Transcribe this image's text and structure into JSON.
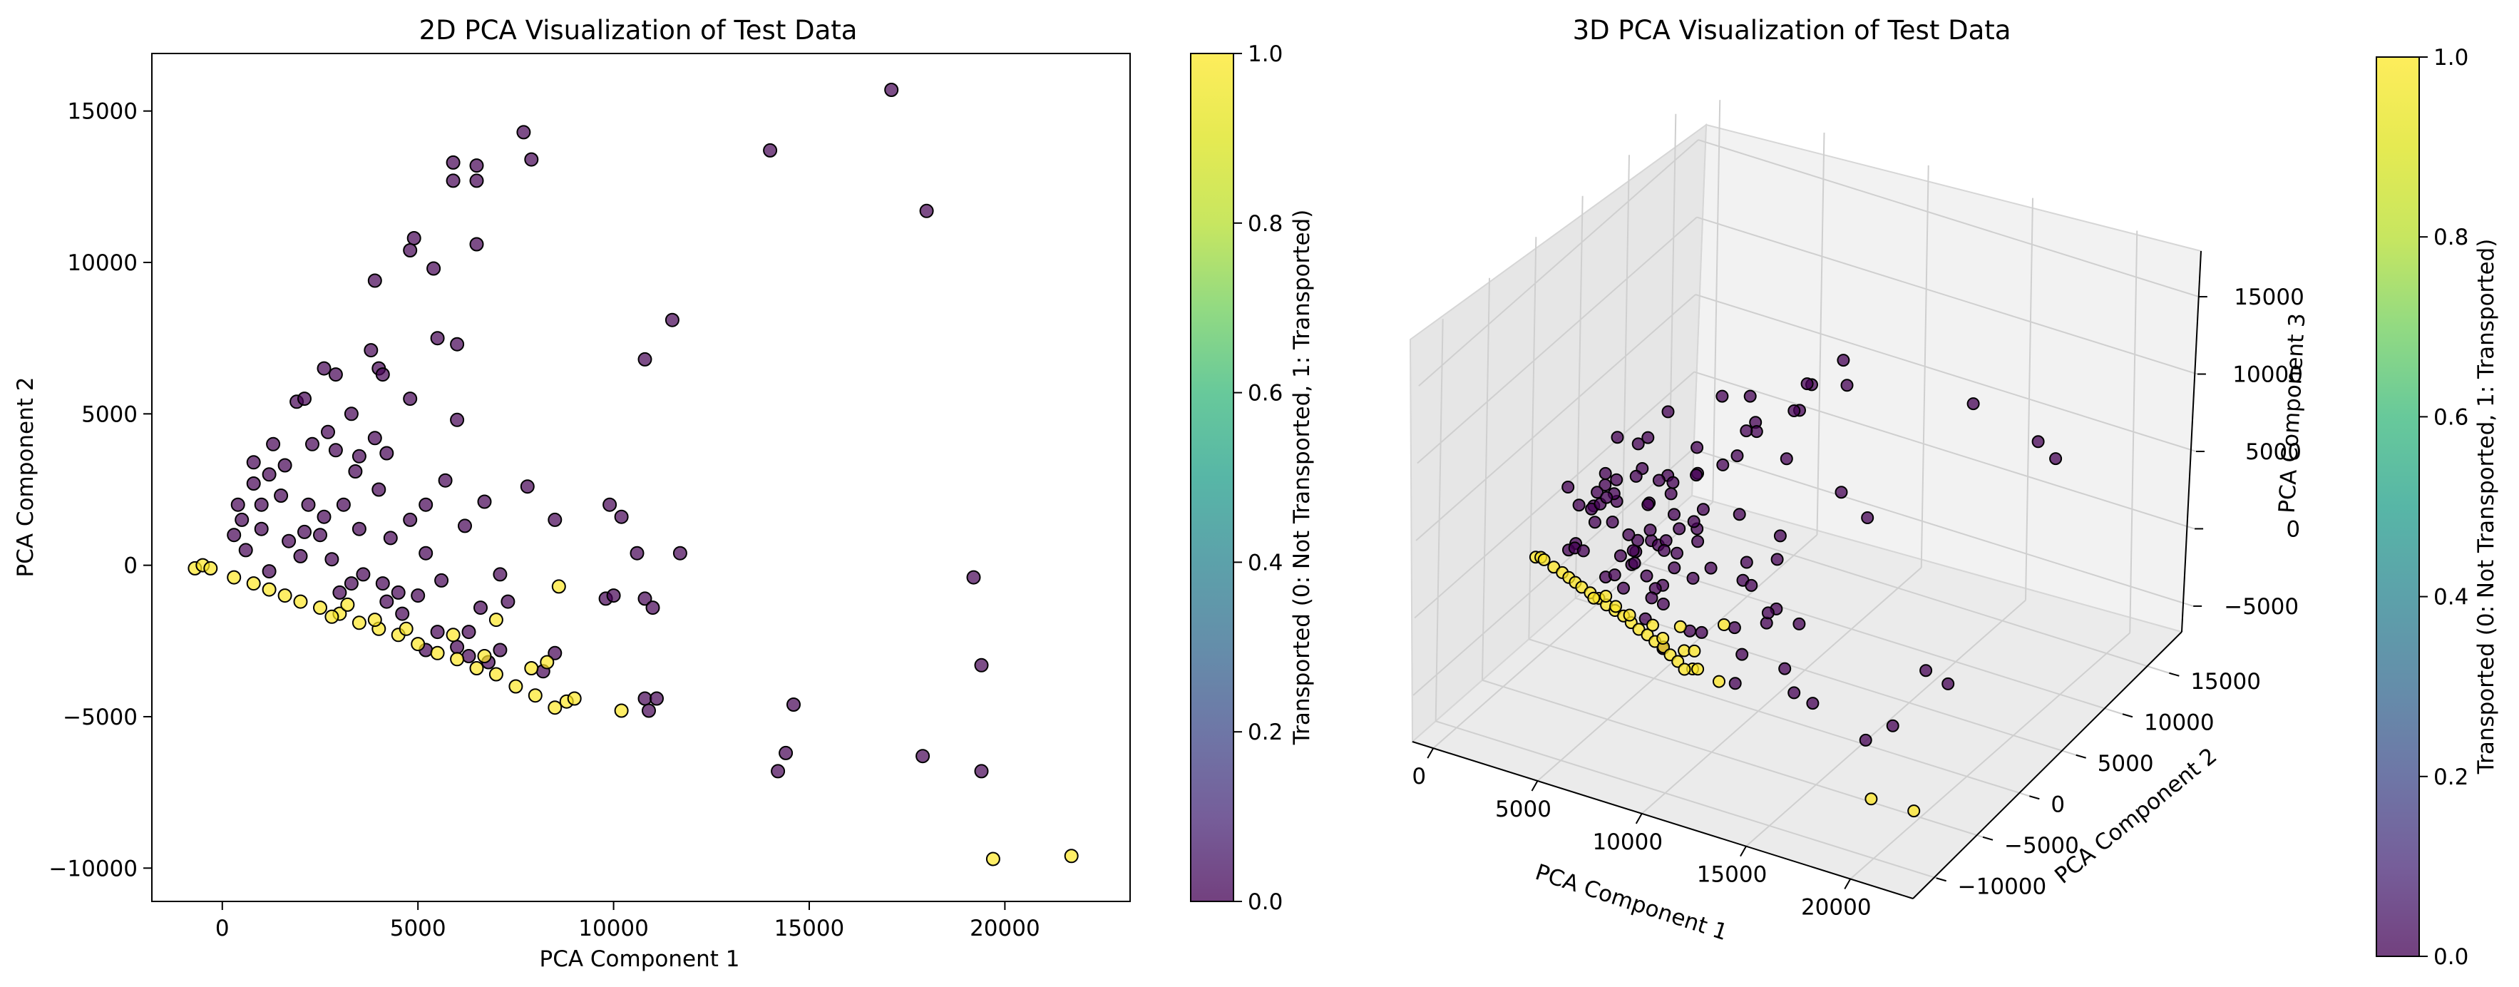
{
  "chart_data": [
    {
      "type": "scatter",
      "title": "2D PCA Visualization of Test Data",
      "xlabel": "PCA Component 1",
      "ylabel": "PCA Component 2",
      "xlim": [
        -1800,
        23200
      ],
      "ylim": [
        -11100,
        16900
      ],
      "xticks": [
        0,
        5000,
        10000,
        15000,
        20000
      ],
      "yticks": [
        -10000,
        -5000,
        0,
        5000,
        10000,
        15000
      ],
      "xtick_labels": [
        "0",
        "5000",
        "10000",
        "15000",
        "20000"
      ],
      "ytick_labels": [
        "−10000",
        "−5000",
        "0",
        "5000",
        "10000",
        "15000"
      ],
      "colorbar": {
        "label": "Transported (0: Not Transported, 1: Transported)",
        "range": [
          0,
          1
        ],
        "ticks": [
          "0.0",
          "0.2",
          "0.4",
          "0.6",
          "0.8",
          "1.0"
        ]
      },
      "series": [
        {
          "name": "Not Transported (0)",
          "color": "#440154",
          "points": [
            [
              17100,
              15700
            ],
            [
              7700,
              14300
            ],
            [
              14000,
              13700
            ],
            [
              5900,
              13300
            ],
            [
              6500,
              13200
            ],
            [
              7900,
              13400
            ],
            [
              5900,
              12700
            ],
            [
              6500,
              12700
            ],
            [
              18000,
              11700
            ],
            [
              4900,
              10800
            ],
            [
              4800,
              10400
            ],
            [
              6500,
              10600
            ],
            [
              5400,
              9800
            ],
            [
              3900,
              9400
            ],
            [
              11500,
              8100
            ],
            [
              5500,
              7500
            ],
            [
              6000,
              7300
            ],
            [
              3800,
              7100
            ],
            [
              10800,
              6800
            ],
            [
              2600,
              6500
            ],
            [
              4000,
              6500
            ],
            [
              4100,
              6300
            ],
            [
              2900,
              6300
            ],
            [
              1900,
              5400
            ],
            [
              2100,
              5500
            ],
            [
              4800,
              5500
            ],
            [
              3300,
              5000
            ],
            [
              6000,
              4800
            ],
            [
              2700,
              4400
            ],
            [
              3900,
              4200
            ],
            [
              1300,
              4000
            ],
            [
              4200,
              3700
            ],
            [
              1200,
              3000
            ],
            [
              3400,
              3100
            ],
            [
              5700,
              2800
            ],
            [
              7800,
              2600
            ],
            [
              4000,
              2500
            ],
            [
              9900,
              2000
            ],
            [
              10200,
              1600
            ],
            [
              8500,
              1500
            ],
            [
              2200,
              2000
            ],
            [
              3100,
              2000
            ],
            [
              800,
              2700
            ],
            [
              1500,
              2300
            ],
            [
              2600,
              1600
            ],
            [
              4800,
              1500
            ],
            [
              6200,
              1300
            ],
            [
              11700,
              400
            ],
            [
              5200,
              400
            ],
            [
              7100,
              -300
            ],
            [
              10600,
              400
            ],
            [
              7300,
              -1200
            ],
            [
              9800,
              -1100
            ],
            [
              10800,
              -1100
            ],
            [
              10000,
              -1000
            ],
            [
              5600,
              -500
            ],
            [
              4100,
              -600
            ],
            [
              4500,
              -900
            ],
            [
              19200,
              -400
            ],
            [
              11000,
              -1400
            ],
            [
              6600,
              -1400
            ],
            [
              3000,
              -900
            ],
            [
              6300,
              -2200
            ],
            [
              7100,
              -2800
            ],
            [
              8500,
              -2900
            ],
            [
              6300,
              -3000
            ],
            [
              6800,
              -3200
            ],
            [
              8200,
              -3500
            ],
            [
              19400,
              -3300
            ],
            [
              10800,
              -4400
            ],
            [
              11100,
              -4400
            ],
            [
              10900,
              -4800
            ],
            [
              14600,
              -4600
            ],
            [
              14400,
              -6200
            ],
            [
              14200,
              -6800
            ],
            [
              17900,
              -6300
            ],
            [
              19400,
              -6800
            ],
            [
              500,
              1500
            ],
            [
              1000,
              2000
            ],
            [
              300,
              1000
            ],
            [
              600,
              500
            ],
            [
              1700,
              800
            ],
            [
              2500,
              1000
            ],
            [
              3500,
              1200
            ],
            [
              4300,
              900
            ],
            [
              2000,
              300
            ],
            [
              1200,
              -200
            ],
            [
              2800,
              200
            ],
            [
              3600,
              -300
            ],
            [
              5000,
              -1000
            ],
            [
              4600,
              -1600
            ],
            [
              5500,
              -2200
            ],
            [
              6000,
              -2700
            ],
            [
              5200,
              -2800
            ],
            [
              800,
              3400
            ],
            [
              1600,
              3300
            ],
            [
              2300,
              4000
            ],
            [
              2900,
              3800
            ],
            [
              3500,
              3600
            ],
            [
              1000,
              1200
            ],
            [
              400,
              2000
            ],
            [
              2100,
              1100
            ],
            [
              6700,
              2100
            ],
            [
              5200,
              2000
            ],
            [
              4200,
              -1200
            ],
            [
              3300,
              -600
            ]
          ]
        },
        {
          "name": "Transported (1)",
          "color": "#fde725",
          "points": [
            [
              -700,
              -100
            ],
            [
              -500,
              0
            ],
            [
              -300,
              -100
            ],
            [
              300,
              -400
            ],
            [
              800,
              -600
            ],
            [
              1200,
              -800
            ],
            [
              1600,
              -1000
            ],
            [
              2000,
              -1200
            ],
            [
              2500,
              -1400
            ],
            [
              3000,
              -1600
            ],
            [
              3500,
              -1900
            ],
            [
              4000,
              -2100
            ],
            [
              4500,
              -2300
            ],
            [
              5000,
              -2600
            ],
            [
              5500,
              -2900
            ],
            [
              6000,
              -3100
            ],
            [
              6500,
              -3400
            ],
            [
              7000,
              -3600
            ],
            [
              7500,
              -4000
            ],
            [
              8000,
              -4300
            ],
            [
              3200,
              -1300
            ],
            [
              3900,
              -1800
            ],
            [
              4700,
              -2100
            ],
            [
              2800,
              -1700
            ],
            [
              6700,
              -3000
            ],
            [
              7000,
              -1800
            ],
            [
              5900,
              -2300
            ],
            [
              7900,
              -3400
            ],
            [
              8300,
              -3200
            ],
            [
              8600,
              -700
            ],
            [
              8800,
              -4500
            ],
            [
              8500,
              -4700
            ],
            [
              9000,
              -4400
            ],
            [
              10200,
              -4800
            ],
            [
              19700,
              -9700
            ],
            [
              21700,
              -9600
            ]
          ]
        }
      ]
    },
    {
      "type": "scatter",
      "title": "3D PCA Visualization of Test Data",
      "xlabel": "PCA Component 1",
      "ylabel": "PCA Component 2",
      "zlabel": "PCA Component 3",
      "xticks": [
        "0",
        "5000",
        "10000",
        "15000",
        "20000"
      ],
      "yticks": [
        "−10000",
        "−5000",
        "0",
        "5000",
        "10000",
        "15000"
      ],
      "zticks": [
        "−5000",
        "0",
        "5000",
        "10000",
        "15000"
      ],
      "colorbar": {
        "label": "Transported (0: Not Transported, 1: Transported)",
        "range": [
          0,
          1
        ],
        "ticks": [
          "0.0",
          "0.2",
          "0.4",
          "0.6",
          "0.8",
          "1.0"
        ]
      }
    }
  ]
}
